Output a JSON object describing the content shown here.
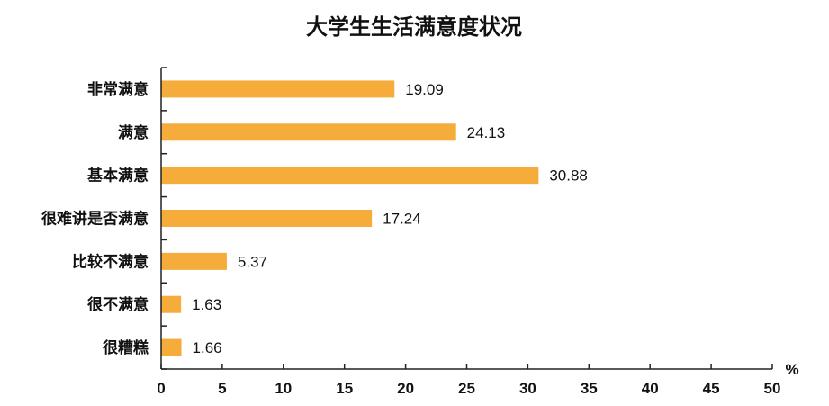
{
  "chart_data": {
    "type": "bar",
    "orientation": "horizontal",
    "title": "大学生生活满意度状况",
    "unit": "%",
    "categories": [
      "非常满意",
      "满意",
      "基本满意",
      "很难讲是否满意",
      "比较不满意",
      "很不满意",
      "很糟糕"
    ],
    "values": [
      19.09,
      24.13,
      30.88,
      17.24,
      5.37,
      1.63,
      1.66
    ],
    "value_labels": [
      "19.09",
      "24.13",
      "30.88",
      "17.24",
      "5.37",
      "1.63",
      "1.66"
    ],
    "xlim": [
      0,
      50
    ],
    "xticks": [
      "0",
      "5",
      "10",
      "15",
      "20",
      "25",
      "30",
      "35",
      "40",
      "45",
      "50"
    ],
    "bar_color": "#F5AC3A",
    "grid": false,
    "legend": "none"
  }
}
